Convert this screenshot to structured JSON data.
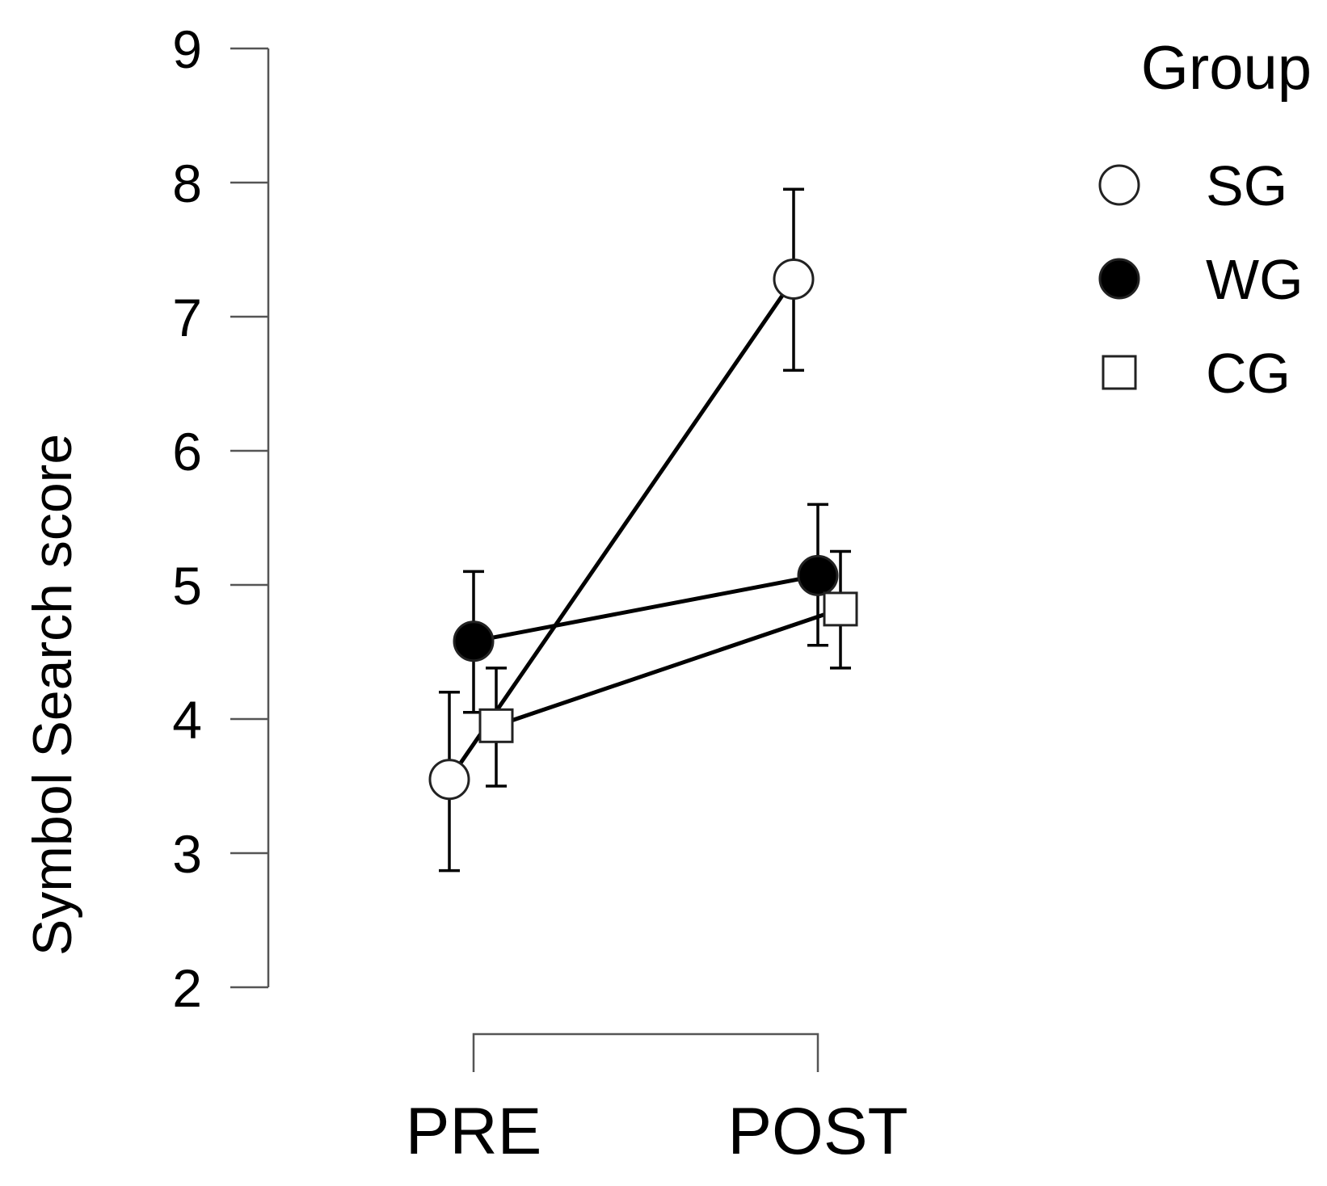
{
  "chart_data": {
    "type": "line",
    "title": "",
    "xlabel": "",
    "ylabel": "Symbol Search score",
    "categories": [
      "PRE",
      "POST"
    ],
    "ylim": [
      2,
      9
    ],
    "yticks": [
      "2",
      "3",
      "4",
      "5",
      "6",
      "7",
      "8",
      "9"
    ],
    "legend": {
      "title": "Group",
      "position": "top-right"
    },
    "grid": false,
    "series": [
      {
        "name": "SG",
        "marker": "open-circle",
        "values": [
          3.55,
          7.28
        ],
        "err_low": [
          2.87,
          6.6
        ],
        "err_high": [
          4.2,
          7.95
        ]
      },
      {
        "name": "WG",
        "marker": "filled-circle",
        "values": [
          4.58,
          5.07
        ],
        "err_low": [
          4.05,
          4.55
        ],
        "err_high": [
          5.1,
          5.6
        ]
      },
      {
        "name": "CG",
        "marker": "open-square",
        "values": [
          3.95,
          4.82
        ],
        "err_low": [
          3.5,
          4.38
        ],
        "err_high": [
          4.38,
          5.25
        ]
      }
    ],
    "colors": {
      "line": "#000000",
      "marker_fill_open": "#ffffff",
      "marker_fill_filled": "#000000",
      "axis": "#555555"
    }
  }
}
